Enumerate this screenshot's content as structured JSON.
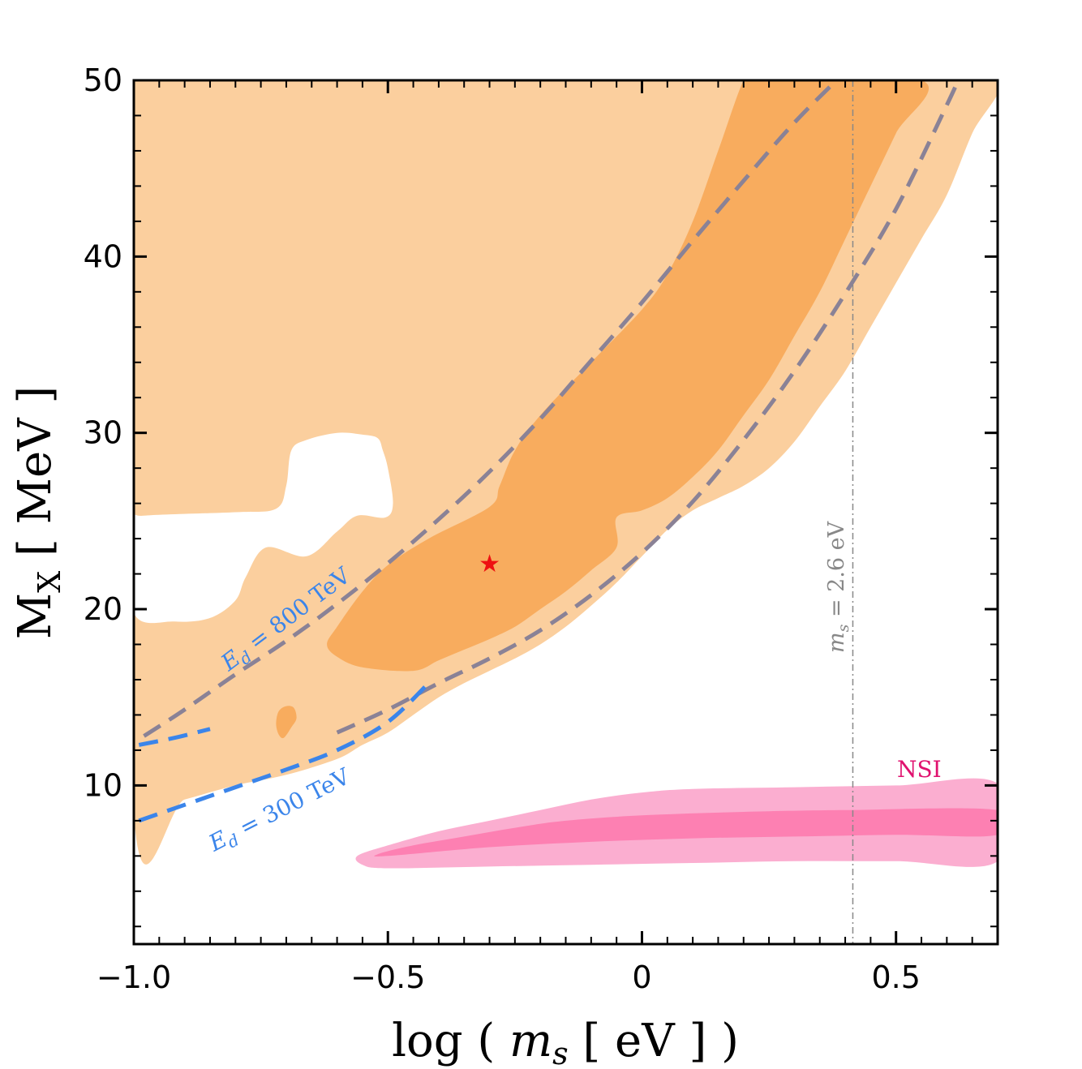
{
  "chart_data": {
    "type": "contour",
    "xlabel": "log ( m_s [ eV ] )",
    "xlabel_parts": {
      "pre": "log ( ",
      "var": "m",
      "sub": "s",
      "post": " [ eV ] )"
    },
    "ylabel": "M_X [ MeV ]",
    "ylabel_parts": {
      "main": "M",
      "sub": "X",
      "post": " [ MeV ]"
    },
    "xlim": [
      -1.0,
      0.7
    ],
    "ylim": [
      1,
      50
    ],
    "x_ticks": [
      -1.0,
      -0.5,
      0,
      0.5
    ],
    "x_tick_labels": [
      "−1.0",
      "−0.5",
      "0",
      "0.5"
    ],
    "y_ticks": [
      10,
      20,
      30,
      40,
      50
    ],
    "y_tick_labels": [
      "10",
      "20",
      "30",
      "40",
      "50"
    ],
    "colors": {
      "region_light": "#fbcf9e",
      "region_dark": "#f8ac5e",
      "nsi_light": "#fbaed0",
      "nsi_dark": "#fd80b2",
      "curve_gray": "#8a8296",
      "curve_blue": "#3b85ea",
      "best_fit": "#ee1111",
      "nsi_label": "#e0126f",
      "vline": "#888888"
    },
    "regions": [
      {
        "name": "light",
        "fill": "region_light",
        "points": [
          [
            -1.0,
            50
          ],
          [
            0.2,
            50
          ],
          [
            0.3,
            50
          ],
          [
            0.45,
            50
          ],
          [
            0.52,
            50
          ],
          [
            0.7,
            50
          ],
          [
            0.65,
            47
          ],
          [
            0.6,
            43.5
          ],
          [
            0.55,
            41
          ],
          [
            0.5,
            38.5
          ],
          [
            0.45,
            36
          ],
          [
            0.4,
            33.5
          ],
          [
            0.35,
            31.5
          ],
          [
            0.3,
            29.5
          ],
          [
            0.25,
            28
          ],
          [
            0.2,
            27
          ],
          [
            0.15,
            26.3
          ],
          [
            0.1,
            25.6
          ],
          [
            0.05,
            24.5
          ],
          [
            0.0,
            23
          ],
          [
            -0.05,
            21.5
          ],
          [
            -0.1,
            20.2
          ],
          [
            -0.15,
            19
          ],
          [
            -0.2,
            18
          ],
          [
            -0.25,
            17.2
          ],
          [
            -0.3,
            16.5
          ],
          [
            -0.35,
            15.8
          ],
          [
            -0.4,
            15
          ],
          [
            -0.45,
            14
          ],
          [
            -0.5,
            13
          ],
          [
            -0.55,
            12.3
          ],
          [
            -0.6,
            11.5
          ],
          [
            -0.7,
            10.6
          ],
          [
            -0.8,
            10
          ],
          [
            -0.9,
            9.2
          ],
          [
            -1.0,
            8.4
          ]
        ]
      },
      {
        "name": "dark",
        "fill": "region_dark",
        "points": [
          [
            0.22,
            50
          ],
          [
            0.55,
            50
          ],
          [
            0.5,
            47
          ],
          [
            0.45,
            44
          ],
          [
            0.4,
            41
          ],
          [
            0.35,
            38
          ],
          [
            0.3,
            35.5
          ],
          [
            0.25,
            33
          ],
          [
            0.2,
            31
          ],
          [
            0.15,
            29
          ],
          [
            0.1,
            27.5
          ],
          [
            0.05,
            26.3
          ],
          [
            0.0,
            25.6
          ],
          [
            -0.05,
            25.2
          ],
          [
            -0.05,
            23.5
          ],
          [
            -0.1,
            22.2
          ],
          [
            -0.15,
            21
          ],
          [
            -0.2,
            20
          ],
          [
            -0.25,
            19
          ],
          [
            -0.3,
            18.3
          ],
          [
            -0.35,
            17.7
          ],
          [
            -0.4,
            17.1
          ],
          [
            -0.45,
            16.5
          ],
          [
            -0.55,
            16.7
          ],
          [
            -0.6,
            17.3
          ],
          [
            -0.62,
            18
          ],
          [
            -0.6,
            19
          ],
          [
            -0.55,
            21
          ],
          [
            -0.5,
            22.5
          ],
          [
            -0.42,
            24
          ],
          [
            -0.3,
            25.8
          ],
          [
            -0.28,
            27
          ],
          [
            -0.25,
            29
          ],
          [
            -0.2,
            31
          ],
          [
            -0.1,
            34
          ],
          [
            0.0,
            37
          ],
          [
            0.05,
            39
          ],
          [
            0.1,
            42
          ],
          [
            0.15,
            46
          ],
          [
            0.2,
            50
          ]
        ]
      },
      {
        "name": "dark-blob",
        "fill": "region_dark",
        "points": [
          [
            -0.705,
            12.7
          ],
          [
            -0.69,
            13.3
          ],
          [
            -0.68,
            13.8
          ],
          [
            -0.685,
            14.4
          ],
          [
            -0.7,
            14.5
          ],
          [
            -0.715,
            14.2
          ],
          [
            -0.72,
            13.5
          ],
          [
            -0.715,
            12.9
          ]
        ]
      },
      {
        "name": "nsi-light",
        "fill": "nsi_light",
        "points": [
          [
            -0.56,
            6
          ],
          [
            -0.5,
            6.6
          ],
          [
            -0.4,
            7.4
          ],
          [
            -0.3,
            8
          ],
          [
            -0.2,
            8.6
          ],
          [
            -0.1,
            9.2
          ],
          [
            0.0,
            9.6
          ],
          [
            0.1,
            9.8
          ],
          [
            0.3,
            9.9
          ],
          [
            0.5,
            10
          ],
          [
            0.7,
            10.1
          ],
          [
            0.7,
            5.7
          ],
          [
            0.5,
            5.7
          ],
          [
            0.3,
            5.7
          ],
          [
            0.1,
            5.6
          ],
          [
            -0.1,
            5.5
          ],
          [
            -0.3,
            5.4
          ],
          [
            -0.5,
            5.3
          ],
          [
            -0.55,
            5.5
          ]
        ]
      },
      {
        "name": "nsi-dark",
        "fill": "nsi_dark",
        "points": [
          [
            -0.52,
            6.1
          ],
          [
            -0.45,
            6.6
          ],
          [
            -0.35,
            7.1
          ],
          [
            -0.25,
            7.6
          ],
          [
            -0.15,
            8
          ],
          [
            0.0,
            8.3
          ],
          [
            0.2,
            8.5
          ],
          [
            0.4,
            8.6
          ],
          [
            0.7,
            8.6
          ],
          [
            0.7,
            7.2
          ],
          [
            0.5,
            7.2
          ],
          [
            0.3,
            7.1
          ],
          [
            0.1,
            7
          ],
          [
            -0.1,
            6.8
          ],
          [
            -0.3,
            6.5
          ],
          [
            -0.5,
            6
          ]
        ]
      }
    ],
    "holes": [
      {
        "name": "hole-1",
        "points": [
          [
            -0.69,
            29
          ],
          [
            -0.66,
            29.6
          ],
          [
            -0.6,
            30
          ],
          [
            -0.55,
            29.9
          ],
          [
            -0.52,
            29.7
          ],
          [
            -0.51,
            29
          ],
          [
            -0.5,
            28
          ],
          [
            -0.49,
            26
          ],
          [
            -0.505,
            25.2
          ],
          [
            -0.56,
            25.3
          ],
          [
            -0.6,
            24.4
          ],
          [
            -0.66,
            23
          ],
          [
            -0.74,
            23.5
          ],
          [
            -0.78,
            21.8
          ],
          [
            -0.8,
            20.5
          ],
          [
            -0.85,
            19.5
          ],
          [
            -0.92,
            19.3
          ],
          [
            -1.0,
            19.8
          ],
          [
            -1.0,
            25
          ],
          [
            -0.98,
            25.3
          ],
          [
            -0.8,
            25.5
          ],
          [
            -0.72,
            25.7
          ],
          [
            -0.7,
            27
          ]
        ]
      }
    ],
    "curves": [
      {
        "label": "E_d = 800 TeV",
        "color": "curve_gray",
        "dash": true,
        "x": [
          -0.98,
          -0.9,
          -0.8,
          -0.7,
          -0.6,
          -0.5,
          -0.4,
          -0.3,
          -0.2,
          -0.1,
          0.0,
          0.1,
          0.2,
          0.3,
          0.4,
          0.5,
          0.55
        ],
        "y": [
          12.8,
          14.3,
          16.3,
          18.2,
          20.3,
          22.6,
          25.1,
          27.8,
          30.8,
          34.1,
          37.4,
          40.9,
          44.3,
          47.6,
          50.5,
          53.5,
          55.0
        ]
      },
      {
        "label": "lower gray dashed",
        "color": "curve_gray",
        "dash": true,
        "x": [
          -0.6,
          -0.5,
          -0.4,
          -0.3,
          -0.2,
          -0.1,
          0.0,
          0.1,
          0.2,
          0.3,
          0.4,
          0.5,
          0.6,
          0.63
        ],
        "y": [
          13.0,
          14.3,
          15.8,
          17.2,
          18.8,
          20.8,
          23.2,
          26.1,
          29.6,
          33.5,
          37.9,
          42.7,
          48.6,
          50.5
        ]
      },
      {
        "label": "E_d = 300 TeV",
        "color": "curve_blue",
        "dash": true,
        "x": [
          -0.99,
          -0.9,
          -0.8,
          -0.7,
          -0.6,
          -0.5,
          -0.42
        ],
        "y": [
          8.0,
          8.9,
          9.9,
          10.9,
          12.0,
          13.6,
          15.8
        ]
      },
      {
        "label": "blue dashed upper",
        "color": "curve_blue",
        "dash": true,
        "x": [
          -0.99,
          -0.92,
          -0.85
        ],
        "y": [
          12.3,
          12.7,
          13.2
        ]
      }
    ],
    "best_fit": {
      "x": -0.3,
      "y": 22.5,
      "symbol": "★"
    },
    "vline": {
      "x": 0.415,
      "label": "m_s = 2.6 eV",
      "label_parts": {
        "var": "m",
        "sub": "s",
        "post": " = 2.6 eV"
      }
    },
    "annotations": {
      "ed800": {
        "var": "E",
        "sub": "d",
        "post": " = 800 TeV"
      },
      "ed300": {
        "var": "E",
        "sub": "d",
        "post": " = 300 TeV"
      },
      "nsi": "NSI"
    }
  }
}
